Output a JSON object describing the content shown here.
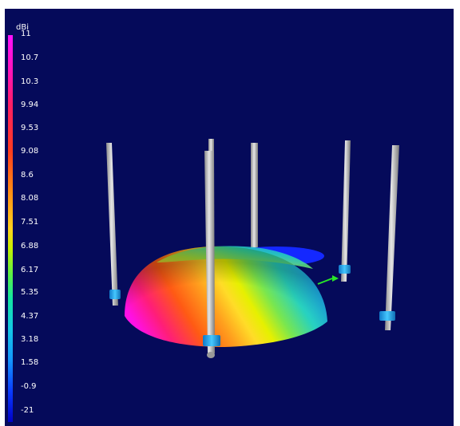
{
  "legend": {
    "unit": "dBi",
    "ticks": [
      "11",
      "10.7",
      "10.3",
      "9.94",
      "9.53",
      "9.08",
      "8.6",
      "8.08",
      "7.51",
      "6.88",
      "6.17",
      "5.35",
      "4.37",
      "3.18",
      "1.58",
      "-0.9",
      "-21"
    ]
  },
  "scene": {
    "description_colors": {
      "background": "#050a5a",
      "rod": "#c8c8c8",
      "collar": "#1aa8e6"
    }
  }
}
